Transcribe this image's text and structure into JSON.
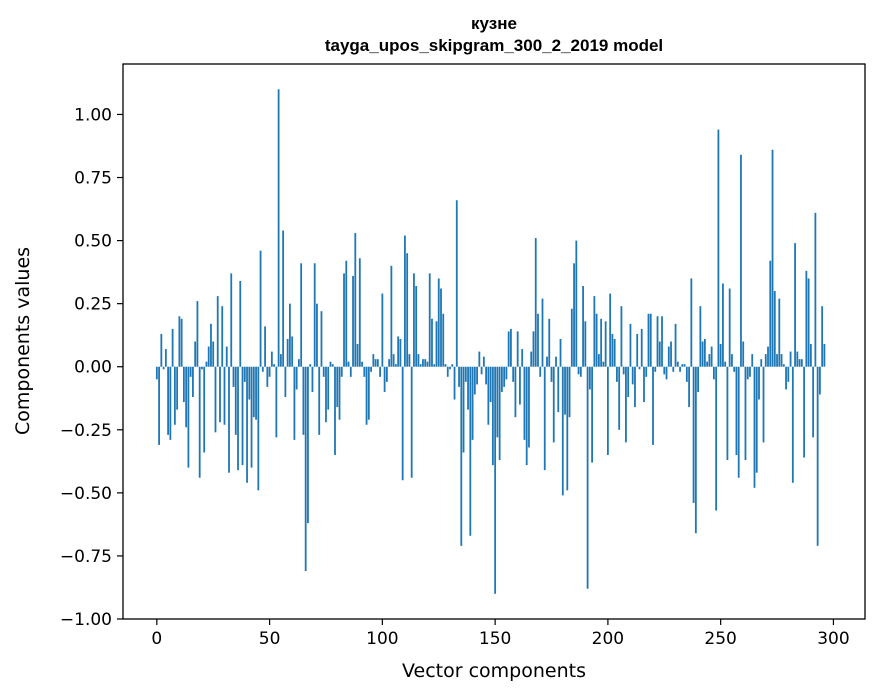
{
  "chart_data": {
    "type": "bar",
    "title": "кузне",
    "subtitle": "tayga_upos_skipgram_300_2_2019 model",
    "xlabel": "Vector components",
    "ylabel": "Components values",
    "xlim": [
      -15,
      314
    ],
    "ylim": [
      -1.0,
      1.2
    ],
    "xticks": [
      0,
      50,
      100,
      150,
      200,
      250,
      300
    ],
    "yticks": [
      -1.0,
      -0.75,
      -0.5,
      -0.25,
      0.0,
      0.25,
      0.5,
      0.75,
      1.0
    ],
    "xtick_labels": [
      "0",
      "50",
      "100",
      "150",
      "200",
      "250",
      "300"
    ],
    "ytick_labels": [
      "−1.00",
      "−0.75",
      "−0.50",
      "−0.25",
      "0.00",
      "0.25",
      "0.50",
      "0.75",
      "1.00"
    ],
    "bar_color": "#1f77b4",
    "grid": false,
    "values": [
      -0.05,
      -0.31,
      0.13,
      -0.01,
      0.07,
      -0.27,
      -0.29,
      0.15,
      -0.23,
      -0.17,
      0.2,
      0.19,
      -0.14,
      -0.24,
      -0.4,
      -0.04,
      -0.12,
      0.1,
      0.26,
      -0.44,
      -0.01,
      -0.34,
      0.02,
      0.08,
      0.17,
      0.1,
      -0.26,
      0.28,
      -0.22,
      0.24,
      -0.23,
      0.08,
      -0.42,
      0.37,
      -0.08,
      -0.27,
      -0.41,
      0.34,
      -0.39,
      -0.06,
      -0.46,
      -0.13,
      -0.4,
      -0.2,
      -0.21,
      -0.49,
      0.46,
      -0.02,
      0.16,
      -0.08,
      -0.04,
      0.06,
      0.01,
      -0.28,
      1.1,
      0.05,
      0.54,
      -0.12,
      0.11,
      0.25,
      0.12,
      -0.29,
      -0.09,
      0.03,
      0.41,
      -0.27,
      -0.81,
      -0.62,
      0.01,
      -0.1,
      0.41,
      0.25,
      -0.27,
      0.22,
      -0.04,
      -0.22,
      -0.17,
      0.02,
      0.01,
      -0.35,
      -0.16,
      -0.21,
      -0.04,
      0.37,
      0.42,
      0.02,
      -0.04,
      0.36,
      0.53,
      0.09,
      0.43,
      0.02,
      -0.04,
      -0.23,
      -0.21,
      -0.02,
      0.05,
      0.03,
      0.03,
      -0.04,
      0.29,
      -0.1,
      -0.06,
      0.03,
      0.4,
      0.05,
      0.01,
      0.12,
      0.11,
      -0.45,
      0.52,
      0.45,
      0.05,
      -0.44,
      0.37,
      0.32,
      0.05,
      0.01,
      0.03,
      0.03,
      0.02,
      0.37,
      0.19,
      0.01,
      0.18,
      0.35,
      0.31,
      0.21,
      0.01,
      -0.04,
      -0.01,
      0.01,
      -0.13,
      0.66,
      -0.08,
      -0.71,
      -0.34,
      -0.06,
      -0.17,
      -0.67,
      -0.29,
      -0.11,
      -0.07,
      0.06,
      -0.03,
      0.04,
      -0.07,
      -0.23,
      -0.14,
      -0.39,
      -0.9,
      -0.28,
      -0.37,
      -0.1,
      -0.08,
      -0.05,
      0.14,
      0.15,
      -0.06,
      -0.2,
      0.14,
      -0.15,
      0.07,
      -0.29,
      -0.39,
      -0.32,
      0.06,
      0.14,
      0.51,
      0.21,
      -0.04,
      0.27,
      -0.41,
      0.04,
      0.19,
      -0.06,
      -0.3,
      0.04,
      -0.18,
      0.11,
      -0.51,
      -0.19,
      -0.49,
      -0.2,
      0.23,
      0.41,
      0.5,
      -0.03,
      -0.04,
      0.32,
      0.18,
      -0.88,
      -0.09,
      -0.38,
      0.28,
      0.21,
      0.05,
      0.19,
      0.02,
      0.18,
      -0.35,
      0.29,
      0.13,
      0.11,
      -0.06,
      -0.25,
      0.24,
      -0.03,
      -0.3,
      -0.12,
      0.17,
      -0.07,
      -0.16,
      0.13,
      -0.01,
      0.15,
      -0.14,
      -0.04,
      0.21,
      0.21,
      -0.31,
      -0.02,
      0.2,
      0.1,
      0.2,
      -0.03,
      -0.05,
      0.08,
      0.1,
      -0.02,
      0.17,
      0.02,
      -0.02,
      0.01,
      0.01,
      -0.06,
      -0.16,
      0.35,
      -0.54,
      -0.66,
      -0.1,
      0.24,
      0.1,
      0.11,
      0.02,
      0.05,
      0.08,
      -0.05,
      -0.57,
      0.94,
      0.09,
      0.33,
      0.02,
      -0.37,
      0.31,
      0.05,
      -0.02,
      -0.35,
      -0.44,
      0.84,
      0.1,
      -0.37,
      -0.05,
      -0.04,
      0.05,
      -0.48,
      -0.42,
      -0.13,
      0.03,
      -0.3,
      0.05,
      0.08,
      0.42,
      0.86,
      0.3,
      0.05,
      0.27,
      0.05,
      0.01,
      -0.09,
      -0.06,
      0.06,
      -0.46,
      0.49,
      0.06,
      0.03,
      0.03,
      -0.36,
      0.38,
      0.35,
      0.09,
      -0.28,
      0.61,
      -0.71,
      -0.11,
      0.24,
      0.09
    ]
  }
}
